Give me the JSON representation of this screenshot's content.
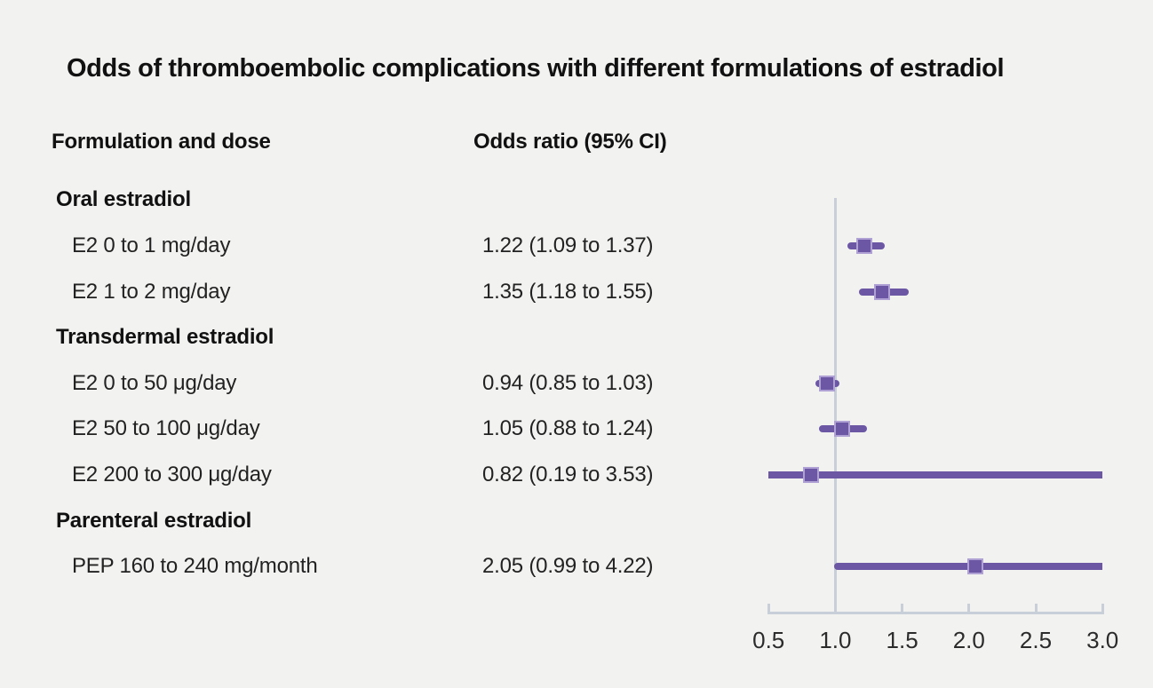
{
  "title": "Odds of thromboembolic complications with different formulations of estradiol",
  "columns": {
    "formulation": "Formulation and dose",
    "odds_ratio": "Odds ratio (95% CI)"
  },
  "colors": {
    "background": "#f2f2f0",
    "marker": "#6b57a4",
    "marker_edge": "#b0a1d4",
    "axis": "#c9cfd8",
    "text": "#222222"
  },
  "chart_data": {
    "type": "forest",
    "title": "Odds of thromboembolic complications with different formulations of estradiol",
    "xlabel": "Odds ratio",
    "xlim": [
      0.5,
      3.0
    ],
    "reference_line": 1.0,
    "tick_values": [
      0.5,
      1.0,
      1.5,
      2.0,
      2.5,
      3.0
    ],
    "tick_labels": [
      "0.5",
      "1.0",
      "1.5",
      "2.0",
      "2.5",
      "3.0"
    ],
    "legend": "none",
    "grid": "off",
    "rows": [
      {
        "kind": "group",
        "label": "Oral estradiol"
      },
      {
        "kind": "item",
        "label": "E2 0 to 1 mg/day",
        "value_text": "1.22 (1.09 to 1.37)",
        "or": 1.22,
        "ci_low": 1.09,
        "ci_high": 1.37
      },
      {
        "kind": "item",
        "label": "E2 1 to 2 mg/day",
        "value_text": "1.35 (1.18 to 1.55)",
        "or": 1.35,
        "ci_low": 1.18,
        "ci_high": 1.55
      },
      {
        "kind": "group",
        "label": "Transdermal estradiol"
      },
      {
        "kind": "item",
        "label": "E2 0 to 50 μg/day",
        "value_text": "0.94 (0.85 to 1.03)",
        "or": 0.94,
        "ci_low": 0.85,
        "ci_high": 1.03
      },
      {
        "kind": "item",
        "label": "E2 50 to 100 μg/day",
        "value_text": "1.05 (0.88 to 1.24)",
        "or": 1.05,
        "ci_low": 0.88,
        "ci_high": 1.24
      },
      {
        "kind": "item",
        "label": "E2 200 to 300 μg/day",
        "value_text": "0.82 (0.19 to 3.53)",
        "or": 0.82,
        "ci_low": 0.19,
        "ci_high": 3.53
      },
      {
        "kind": "group",
        "label": "Parenteral estradiol"
      },
      {
        "kind": "item",
        "label": "PEP 160 to 240 mg/month",
        "value_text": "2.05 (0.99 to 4.22)",
        "or": 2.05,
        "ci_low": 0.99,
        "ci_high": 4.22
      }
    ]
  }
}
